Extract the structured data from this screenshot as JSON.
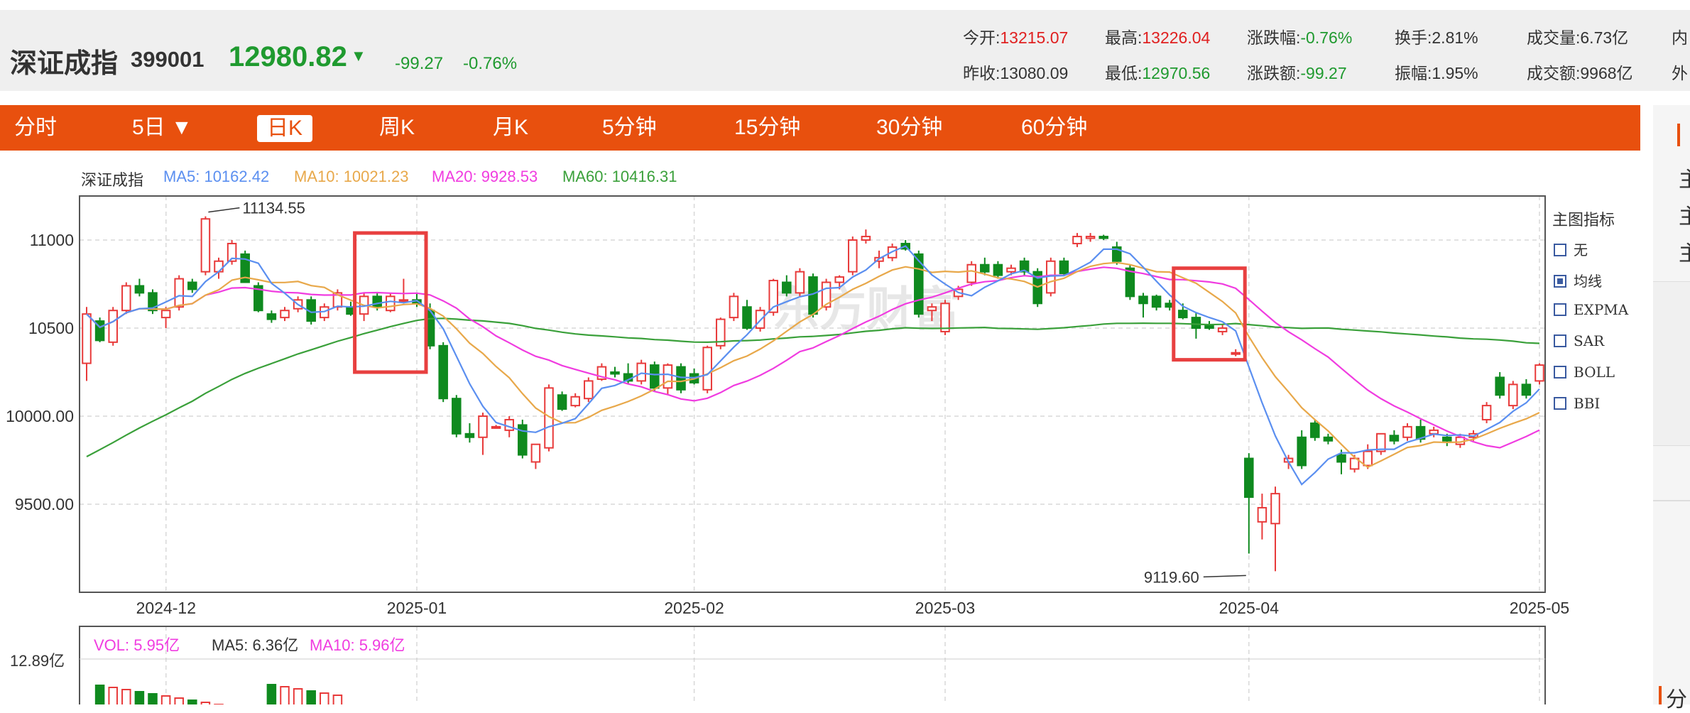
{
  "quote": {
    "name": "深证成指",
    "code": "399001",
    "price": "12980.82",
    "arrow": "▼",
    "change": "-99.27",
    "change_pct": "-0.76%",
    "stats": [
      {
        "label": "今开:",
        "value": "13215.07",
        "color": "red"
      },
      {
        "label": "最高:",
        "value": "13226.04",
        "color": "red"
      },
      {
        "label": "涨跌幅:",
        "value": "-0.76%",
        "color": "green"
      },
      {
        "label": "换手:",
        "value": "2.81%",
        "color": "normal"
      },
      {
        "label": "成交量:",
        "value": "6.73亿",
        "color": "normal"
      },
      {
        "label": "内",
        "value": "",
        "color": "normal"
      },
      {
        "label": "昨收:",
        "value": "13080.09",
        "color": "normal"
      },
      {
        "label": "最低:",
        "value": "12970.56",
        "color": "green"
      },
      {
        "label": "涨跌额:",
        "value": "-99.27",
        "color": "green"
      },
      {
        "label": "振幅:",
        "value": "1.95%",
        "color": "normal"
      },
      {
        "label": "成交额:",
        "value": "9968亿",
        "color": "normal"
      },
      {
        "label": "外",
        "value": "",
        "color": "normal"
      }
    ]
  },
  "tabs": [
    "分时",
    "5日 ▼",
    "日K",
    "周K",
    "月K",
    "5分钟",
    "15分钟",
    "30分钟",
    "60分钟"
  ],
  "active_tab": "日K",
  "legend": {
    "name": "深证成指",
    "ma5": "MA5: 10162.42",
    "ma10": "MA10: 10021.23",
    "ma20": "MA20: 9928.53",
    "ma60": "MA60: 10416.31"
  },
  "indicators": {
    "title": "主图指标",
    "items": [
      {
        "label": "无",
        "checked": false
      },
      {
        "label": "均线",
        "checked": true
      },
      {
        "label": "EXPMA",
        "checked": false
      },
      {
        "label": "SAR",
        "checked": false
      },
      {
        "label": "BOLL",
        "checked": false
      },
      {
        "label": "BBI",
        "checked": false
      }
    ]
  },
  "volume_legend": {
    "vol": "VOL: 5.95亿",
    "ma5": "MA5: 6.36亿",
    "ma10": "MA10: 5.96亿",
    "ytick_top": "12.89亿"
  },
  "right_panel": {
    "chars": [
      "主",
      "主",
      "主"
    ],
    "bottom": "分"
  },
  "watermark": "东方财富",
  "colors": {
    "up": "#e83a3a",
    "down": "#0f8a1f",
    "ma5": "#5b8ff0",
    "ma10": "#e8a84a",
    "ma20": "#f03ce0",
    "ma60": "#3aa03a",
    "accent": "#e8500e"
  },
  "chart_data": {
    "type": "candlestick",
    "yticks": [
      "11000",
      "10500",
      "10000.00",
      "9500.00"
    ],
    "ylim": [
      9000,
      11250
    ],
    "xticks": [
      "2024-12",
      "2025-01",
      "2025-02",
      "2025-03",
      "2025-04",
      "2025-05"
    ],
    "annotations": [
      {
        "text": "11134.55",
        "index": 9,
        "value": 11134.55
      },
      {
        "text": "9119.60",
        "index": 88,
        "value": 9119.6
      }
    ],
    "highlight_boxes": [
      {
        "from_index": 21,
        "to_index": 25,
        "low": 10250,
        "high": 11040
      },
      {
        "from_index": 83,
        "to_index": 87,
        "low": 10320,
        "high": 10840
      }
    ],
    "candles": [
      {
        "o": 10300,
        "h": 10620,
        "l": 10200,
        "c": 10580
      },
      {
        "o": 10540,
        "h": 10560,
        "l": 10420,
        "c": 10430
      },
      {
        "o": 10420,
        "h": 10620,
        "l": 10400,
        "c": 10600
      },
      {
        "o": 10600,
        "h": 10760,
        "l": 10580,
        "c": 10740
      },
      {
        "o": 10740,
        "h": 10780,
        "l": 10680,
        "c": 10700
      },
      {
        "o": 10700,
        "h": 10720,
        "l": 10580,
        "c": 10600
      },
      {
        "o": 10560,
        "h": 10620,
        "l": 10500,
        "c": 10600
      },
      {
        "o": 10620,
        "h": 10800,
        "l": 10600,
        "c": 10780
      },
      {
        "o": 10760,
        "h": 10780,
        "l": 10700,
        "c": 10720
      },
      {
        "o": 10820,
        "h": 11134.55,
        "l": 10800,
        "c": 11120
      },
      {
        "o": 10820,
        "h": 10900,
        "l": 10780,
        "c": 10880
      },
      {
        "o": 10880,
        "h": 11000,
        "l": 10860,
        "c": 10980
      },
      {
        "o": 10920,
        "h": 10940,
        "l": 10760,
        "c": 10760
      },
      {
        "o": 10740,
        "h": 10760,
        "l": 10590,
        "c": 10600
      },
      {
        "o": 10580,
        "h": 10600,
        "l": 10530,
        "c": 10550
      },
      {
        "o": 10560,
        "h": 10620,
        "l": 10540,
        "c": 10600
      },
      {
        "o": 10610,
        "h": 10680,
        "l": 10590,
        "c": 10660
      },
      {
        "o": 10660,
        "h": 10680,
        "l": 10520,
        "c": 10540
      },
      {
        "o": 10560,
        "h": 10640,
        "l": 10540,
        "c": 10620
      },
      {
        "o": 10620,
        "h": 10720,
        "l": 10600,
        "c": 10700
      },
      {
        "o": 10620,
        "h": 10650,
        "l": 10570,
        "c": 10580
      },
      {
        "o": 10580,
        "h": 10700,
        "l": 10540,
        "c": 10680
      },
      {
        "o": 10680,
        "h": 10700,
        "l": 10600,
        "c": 10620
      },
      {
        "o": 10600,
        "h": 10700,
        "l": 10590,
        "c": 10680
      },
      {
        "o": 10660,
        "h": 10780,
        "l": 10640,
        "c": 10660
      },
      {
        "o": 10660,
        "h": 10700,
        "l": 10620,
        "c": 10640
      },
      {
        "o": 10600,
        "h": 10640,
        "l": 10380,
        "c": 10400
      },
      {
        "o": 10400,
        "h": 10420,
        "l": 10080,
        "c": 10100
      },
      {
        "o": 10100,
        "h": 10120,
        "l": 9880,
        "c": 9900
      },
      {
        "o": 9900,
        "h": 9960,
        "l": 9850,
        "c": 9880
      },
      {
        "o": 9880,
        "h": 10020,
        "l": 9780,
        "c": 10000
      },
      {
        "o": 9940,
        "h": 9950,
        "l": 9930,
        "c": 9940
      },
      {
        "o": 9920,
        "h": 10000,
        "l": 9880,
        "c": 9980
      },
      {
        "o": 9950,
        "h": 9980,
        "l": 9760,
        "c": 9780
      },
      {
        "o": 9740,
        "h": 9840,
        "l": 9700,
        "c": 9840
      },
      {
        "o": 9820,
        "h": 10180,
        "l": 9800,
        "c": 10160
      },
      {
        "o": 10120,
        "h": 10140,
        "l": 10030,
        "c": 10040
      },
      {
        "o": 10060,
        "h": 10130,
        "l": 10050,
        "c": 10110
      },
      {
        "o": 10100,
        "h": 10220,
        "l": 10080,
        "c": 10200
      },
      {
        "o": 10210,
        "h": 10300,
        "l": 10200,
        "c": 10280
      },
      {
        "o": 10250,
        "h": 10280,
        "l": 10220,
        "c": 10240
      },
      {
        "o": 10240,
        "h": 10300,
        "l": 10180,
        "c": 10200
      },
      {
        "o": 10200,
        "h": 10320,
        "l": 10180,
        "c": 10300
      },
      {
        "o": 10290,
        "h": 10310,
        "l": 10140,
        "c": 10160
      },
      {
        "o": 10160,
        "h": 10300,
        "l": 10120,
        "c": 10290
      },
      {
        "o": 10280,
        "h": 10300,
        "l": 10130,
        "c": 10150
      },
      {
        "o": 10240,
        "h": 10270,
        "l": 10180,
        "c": 10190
      },
      {
        "o": 10150,
        "h": 10400,
        "l": 10130,
        "c": 10390
      },
      {
        "o": 10400,
        "h": 10560,
        "l": 10380,
        "c": 10550
      },
      {
        "o": 10560,
        "h": 10700,
        "l": 10540,
        "c": 10680
      },
      {
        "o": 10620,
        "h": 10660,
        "l": 10490,
        "c": 10500
      },
      {
        "o": 10500,
        "h": 10620,
        "l": 10480,
        "c": 10600
      },
      {
        "o": 10590,
        "h": 10780,
        "l": 10570,
        "c": 10770
      },
      {
        "o": 10760,
        "h": 10800,
        "l": 10680,
        "c": 10700
      },
      {
        "o": 10700,
        "h": 10840,
        "l": 10680,
        "c": 10820
      },
      {
        "o": 10790,
        "h": 10810,
        "l": 10560,
        "c": 10580
      },
      {
        "o": 10620,
        "h": 10780,
        "l": 10600,
        "c": 10760
      },
      {
        "o": 10760,
        "h": 10800,
        "l": 10720,
        "c": 10790
      },
      {
        "o": 10820,
        "h": 11020,
        "l": 10800,
        "c": 11000
      },
      {
        "o": 11000,
        "h": 11060,
        "l": 10980,
        "c": 11020
      },
      {
        "o": 10880,
        "h": 10940,
        "l": 10840,
        "c": 10900
      },
      {
        "o": 10900,
        "h": 10980,
        "l": 10880,
        "c": 10960
      },
      {
        "o": 10980,
        "h": 11000,
        "l": 10940,
        "c": 10950
      },
      {
        "o": 10920,
        "h": 10940,
        "l": 10560,
        "c": 10580
      },
      {
        "o": 10600,
        "h": 10640,
        "l": 10540,
        "c": 10620
      },
      {
        "o": 10480,
        "h": 10660,
        "l": 10460,
        "c": 10640
      },
      {
        "o": 10680,
        "h": 10740,
        "l": 10660,
        "c": 10720
      },
      {
        "o": 10760,
        "h": 10880,
        "l": 10740,
        "c": 10860
      },
      {
        "o": 10860,
        "h": 10900,
        "l": 10800,
        "c": 10820
      },
      {
        "o": 10860,
        "h": 10880,
        "l": 10780,
        "c": 10800
      },
      {
        "o": 10820,
        "h": 10860,
        "l": 10800,
        "c": 10840
      },
      {
        "o": 10880,
        "h": 10900,
        "l": 10800,
        "c": 10820
      },
      {
        "o": 10820,
        "h": 10840,
        "l": 10620,
        "c": 10640
      },
      {
        "o": 10700,
        "h": 10900,
        "l": 10680,
        "c": 10880
      },
      {
        "o": 10880,
        "h": 10900,
        "l": 10800,
        "c": 10810
      },
      {
        "o": 10980,
        "h": 11040,
        "l": 10960,
        "c": 11020
      },
      {
        "o": 11010,
        "h": 11040,
        "l": 10990,
        "c": 11020
      },
      {
        "o": 11020,
        "h": 11030,
        "l": 11000,
        "c": 11010
      },
      {
        "o": 10960,
        "h": 10990,
        "l": 10860,
        "c": 10880
      },
      {
        "o": 10840,
        "h": 10860,
        "l": 10660,
        "c": 10680
      },
      {
        "o": 10680,
        "h": 10700,
        "l": 10560,
        "c": 10640
      },
      {
        "o": 10680,
        "h": 10690,
        "l": 10600,
        "c": 10620
      },
      {
        "o": 10640,
        "h": 10660,
        "l": 10600,
        "c": 10620
      },
      {
        "o": 10600,
        "h": 10640,
        "l": 10550,
        "c": 10560
      },
      {
        "o": 10560,
        "h": 10590,
        "l": 10440,
        "c": 10500
      },
      {
        "o": 10520,
        "h": 10540,
        "l": 10490,
        "c": 10500
      },
      {
        "o": 10480,
        "h": 10520,
        "l": 10460,
        "c": 10500
      },
      {
        "o": 10360,
        "h": 10380,
        "l": 10340,
        "c": 10360
      },
      {
        "o": 9760,
        "h": 9790,
        "l": 9220,
        "c": 9540
      },
      {
        "o": 9400,
        "h": 9560,
        "l": 9300,
        "c": 9480
      },
      {
        "o": 9390,
        "h": 9600,
        "l": 9119.6,
        "c": 9560
      },
      {
        "o": 9740,
        "h": 9780,
        "l": 9700,
        "c": 9760
      },
      {
        "o": 9880,
        "h": 9920,
        "l": 9700,
        "c": 9720
      },
      {
        "o": 9960,
        "h": 9980,
        "l": 9860,
        "c": 9880
      },
      {
        "o": 9880,
        "h": 9900,
        "l": 9840,
        "c": 9860
      },
      {
        "o": 9780,
        "h": 9810,
        "l": 9670,
        "c": 9740
      },
      {
        "o": 9700,
        "h": 9780,
        "l": 9680,
        "c": 9760
      },
      {
        "o": 9720,
        "h": 9840,
        "l": 9700,
        "c": 9800
      },
      {
        "o": 9800,
        "h": 9900,
        "l": 9780,
        "c": 9900
      },
      {
        "o": 9890,
        "h": 9920,
        "l": 9840,
        "c": 9860
      },
      {
        "o": 9880,
        "h": 9960,
        "l": 9860,
        "c": 9940
      },
      {
        "o": 9940,
        "h": 9980,
        "l": 9850,
        "c": 9870
      },
      {
        "o": 9900,
        "h": 9940,
        "l": 9880,
        "c": 9920
      },
      {
        "o": 9880,
        "h": 9900,
        "l": 9830,
        "c": 9860
      },
      {
        "o": 9840,
        "h": 9900,
        "l": 9820,
        "c": 9880
      },
      {
        "o": 9880,
        "h": 9920,
        "l": 9860,
        "c": 9900
      },
      {
        "o": 9980,
        "h": 10080,
        "l": 9960,
        "c": 10060
      },
      {
        "o": 10220,
        "h": 10250,
        "l": 10100,
        "c": 10120
      },
      {
        "o": 10060,
        "h": 10200,
        "l": 10040,
        "c": 10180
      },
      {
        "o": 10180,
        "h": 10210,
        "l": 10100,
        "c": 10120
      },
      {
        "o": 10200,
        "h": 10300,
        "l": 10180,
        "c": 10290
      }
    ]
  }
}
